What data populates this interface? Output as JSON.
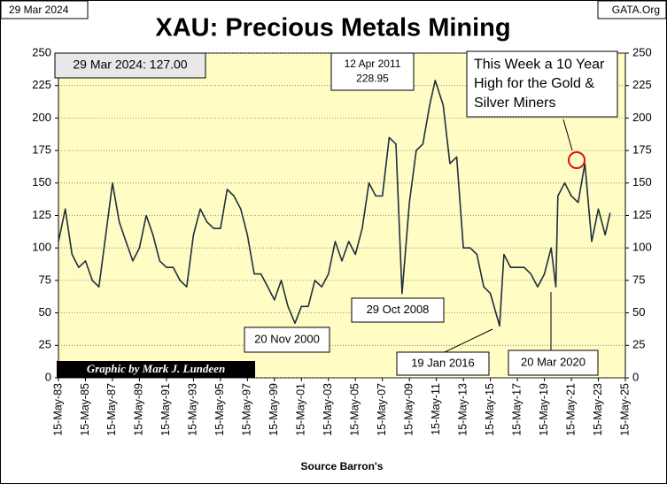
{
  "chart_data": {
    "type": "line",
    "title": "XAU: Precious Metals Mining",
    "date_label": "29 Mar 2024",
    "site": "GATA.Org",
    "credit": "Graphic by Mark J. Lundeen",
    "x_label": "Source Barron's",
    "color": "#1f2f3f",
    "grid": true,
    "ylim": [
      0,
      250
    ],
    "yticks": [
      0,
      25,
      50,
      75,
      100,
      125,
      150,
      175,
      200,
      225,
      250
    ],
    "xlim": [
      "15-May-83",
      "15-May-25"
    ],
    "xticks": [
      "15-May-83",
      "15-May-85",
      "15-May-87",
      "15-May-89",
      "15-May-91",
      "15-May-93",
      "15-May-95",
      "15-May-97",
      "15-May-99",
      "15-May-01",
      "15-May-03",
      "15-May-05",
      "15-May-07",
      "15-May-09",
      "15-May-11",
      "15-May-13",
      "15-May-15",
      "15-May-17",
      "15-May-19",
      "15-May-21",
      "15-May-23",
      "15-May-25"
    ],
    "x": [
      "15-May-83",
      "15-Nov-83",
      "15-May-84",
      "15-Nov-84",
      "15-May-85",
      "15-Nov-85",
      "15-May-86",
      "15-Nov-86",
      "15-May-87",
      "15-Nov-87",
      "15-May-88",
      "15-Nov-88",
      "15-May-89",
      "15-Nov-89",
      "15-May-90",
      "15-Nov-90",
      "15-May-91",
      "15-Nov-91",
      "15-May-92",
      "15-Nov-92",
      "15-May-93",
      "15-Nov-93",
      "15-May-94",
      "15-Nov-94",
      "15-May-95",
      "15-Nov-95",
      "15-May-96",
      "15-Nov-96",
      "15-May-97",
      "15-Nov-97",
      "15-May-98",
      "15-Nov-98",
      "15-May-99",
      "15-Nov-99",
      "15-May-00",
      "20-Nov-00",
      "15-May-01",
      "15-Nov-01",
      "15-May-02",
      "15-Nov-02",
      "15-May-03",
      "15-Nov-03",
      "15-May-04",
      "15-Nov-04",
      "15-May-05",
      "15-Nov-05",
      "15-May-06",
      "15-Nov-06",
      "15-May-07",
      "15-Nov-07",
      "15-May-08",
      "29-Oct-08",
      "15-May-09",
      "15-Nov-09",
      "15-May-10",
      "15-Nov-10",
      "12-Apr-11",
      "15-Nov-11",
      "15-May-12",
      "15-Nov-12",
      "15-May-13",
      "15-Nov-13",
      "15-May-14",
      "15-Nov-14",
      "15-May-15",
      "19-Jan-16",
      "15-May-16",
      "15-Nov-16",
      "15-May-17",
      "15-Nov-17",
      "15-May-18",
      "15-Nov-18",
      "15-May-19",
      "15-Nov-19",
      "20-Mar-20",
      "15-May-20",
      "15-Nov-20",
      "15-May-21",
      "15-Nov-21",
      "15-May-22",
      "15-Nov-22",
      "15-May-23",
      "15-Nov-23",
      "29-Mar-24"
    ],
    "values": [
      105,
      130,
      95,
      85,
      90,
      75,
      70,
      110,
      150,
      120,
      105,
      90,
      100,
      125,
      110,
      90,
      85,
      85,
      75,
      70,
      110,
      130,
      120,
      115,
      115,
      145,
      140,
      130,
      110,
      80,
      80,
      70,
      60,
      75,
      55,
      42,
      55,
      55,
      75,
      70,
      80,
      105,
      90,
      105,
      95,
      115,
      150,
      140,
      140,
      185,
      180,
      65,
      135,
      175,
      180,
      210,
      228.95,
      210,
      165,
      170,
      100,
      100,
      95,
      70,
      65,
      40,
      95,
      85,
      85,
      85,
      80,
      70,
      80,
      100,
      70,
      140,
      150,
      140,
      135,
      165,
      105,
      130,
      110,
      127
    ],
    "annotations": [
      {
        "lines": [
          "29 Mar 2024:  127.00"
        ]
      },
      {
        "lines": [
          "12 Apr 2011",
          "228.95"
        ]
      },
      {
        "lines": [
          "This Week a 10 Year",
          "High for the Gold &",
          "Silver Miners"
        ]
      },
      {
        "lines": [
          "20 Nov 2000"
        ]
      },
      {
        "lines": [
          "29 Oct 2008"
        ]
      },
      {
        "lines": [
          "19 Jan 2016"
        ]
      },
      {
        "lines": [
          "20 Mar 2020"
        ]
      }
    ]
  }
}
